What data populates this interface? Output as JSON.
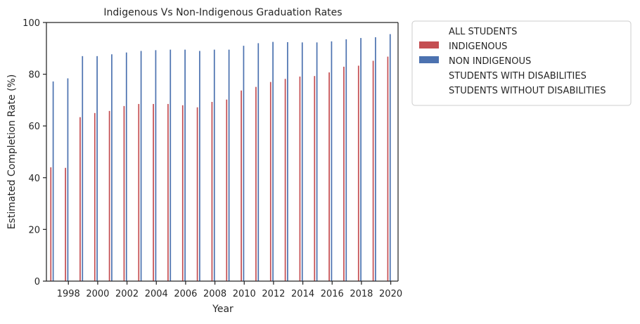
{
  "chart_data": {
    "type": "bar",
    "title": "Indigenous Vs Non-Indigenous Graduation Rates",
    "xlabel": "Year",
    "ylabel": "Estimated Completion Rate (%)",
    "ylim": [
      0,
      100
    ],
    "yticks": [
      "0",
      "20",
      "40",
      "60",
      "80",
      "100"
    ],
    "categories": [
      "1997",
      "1998",
      "1999",
      "2000",
      "2001",
      "2002",
      "2003",
      "2004",
      "2005",
      "2006",
      "2007",
      "2008",
      "2009",
      "2010",
      "2011",
      "2012",
      "2013",
      "2014",
      "2015",
      "2016",
      "2017",
      "2018",
      "2019",
      "2020"
    ],
    "xtick_labels": [
      "1998",
      "2000",
      "2002",
      "2004",
      "2006",
      "2008",
      "2010",
      "2012",
      "2014",
      "2016",
      "2018",
      "2020"
    ],
    "grid": false,
    "legend_position": "outside-right",
    "legend": [
      {
        "label": "ALL STUDENTS",
        "color": null
      },
      {
        "label": "INDIGENOUS",
        "color": "#c44e52"
      },
      {
        "label": "NON INDIGENOUS",
        "color": "#4c72b0"
      },
      {
        "label": "STUDENTS WITH DISABILITIES",
        "color": null
      },
      {
        "label": "STUDENTS WITHOUT DISABILITIES",
        "color": null
      }
    ],
    "series": [
      {
        "name": "INDIGENOUS",
        "color": "#c44e52",
        "values": [
          44.0,
          43.8,
          63.4,
          65.0,
          65.8,
          67.7,
          68.5,
          68.5,
          68.5,
          68.0,
          67.2,
          69.3,
          70.2,
          73.7,
          75.1,
          77.0,
          78.2,
          79.1,
          79.3,
          80.7,
          82.9,
          83.3,
          85.2,
          86.8
        ]
      },
      {
        "name": "NON INDIGENOUS",
        "color": "#4c72b0",
        "values": [
          77.2,
          78.4,
          87.0,
          87.0,
          87.7,
          88.4,
          89.0,
          89.3,
          89.5,
          89.5,
          89.0,
          89.5,
          89.5,
          91.0,
          92.0,
          92.5,
          92.4,
          92.3,
          92.3,
          92.7,
          93.5,
          94.0,
          94.3,
          95.5
        ]
      }
    ]
  }
}
